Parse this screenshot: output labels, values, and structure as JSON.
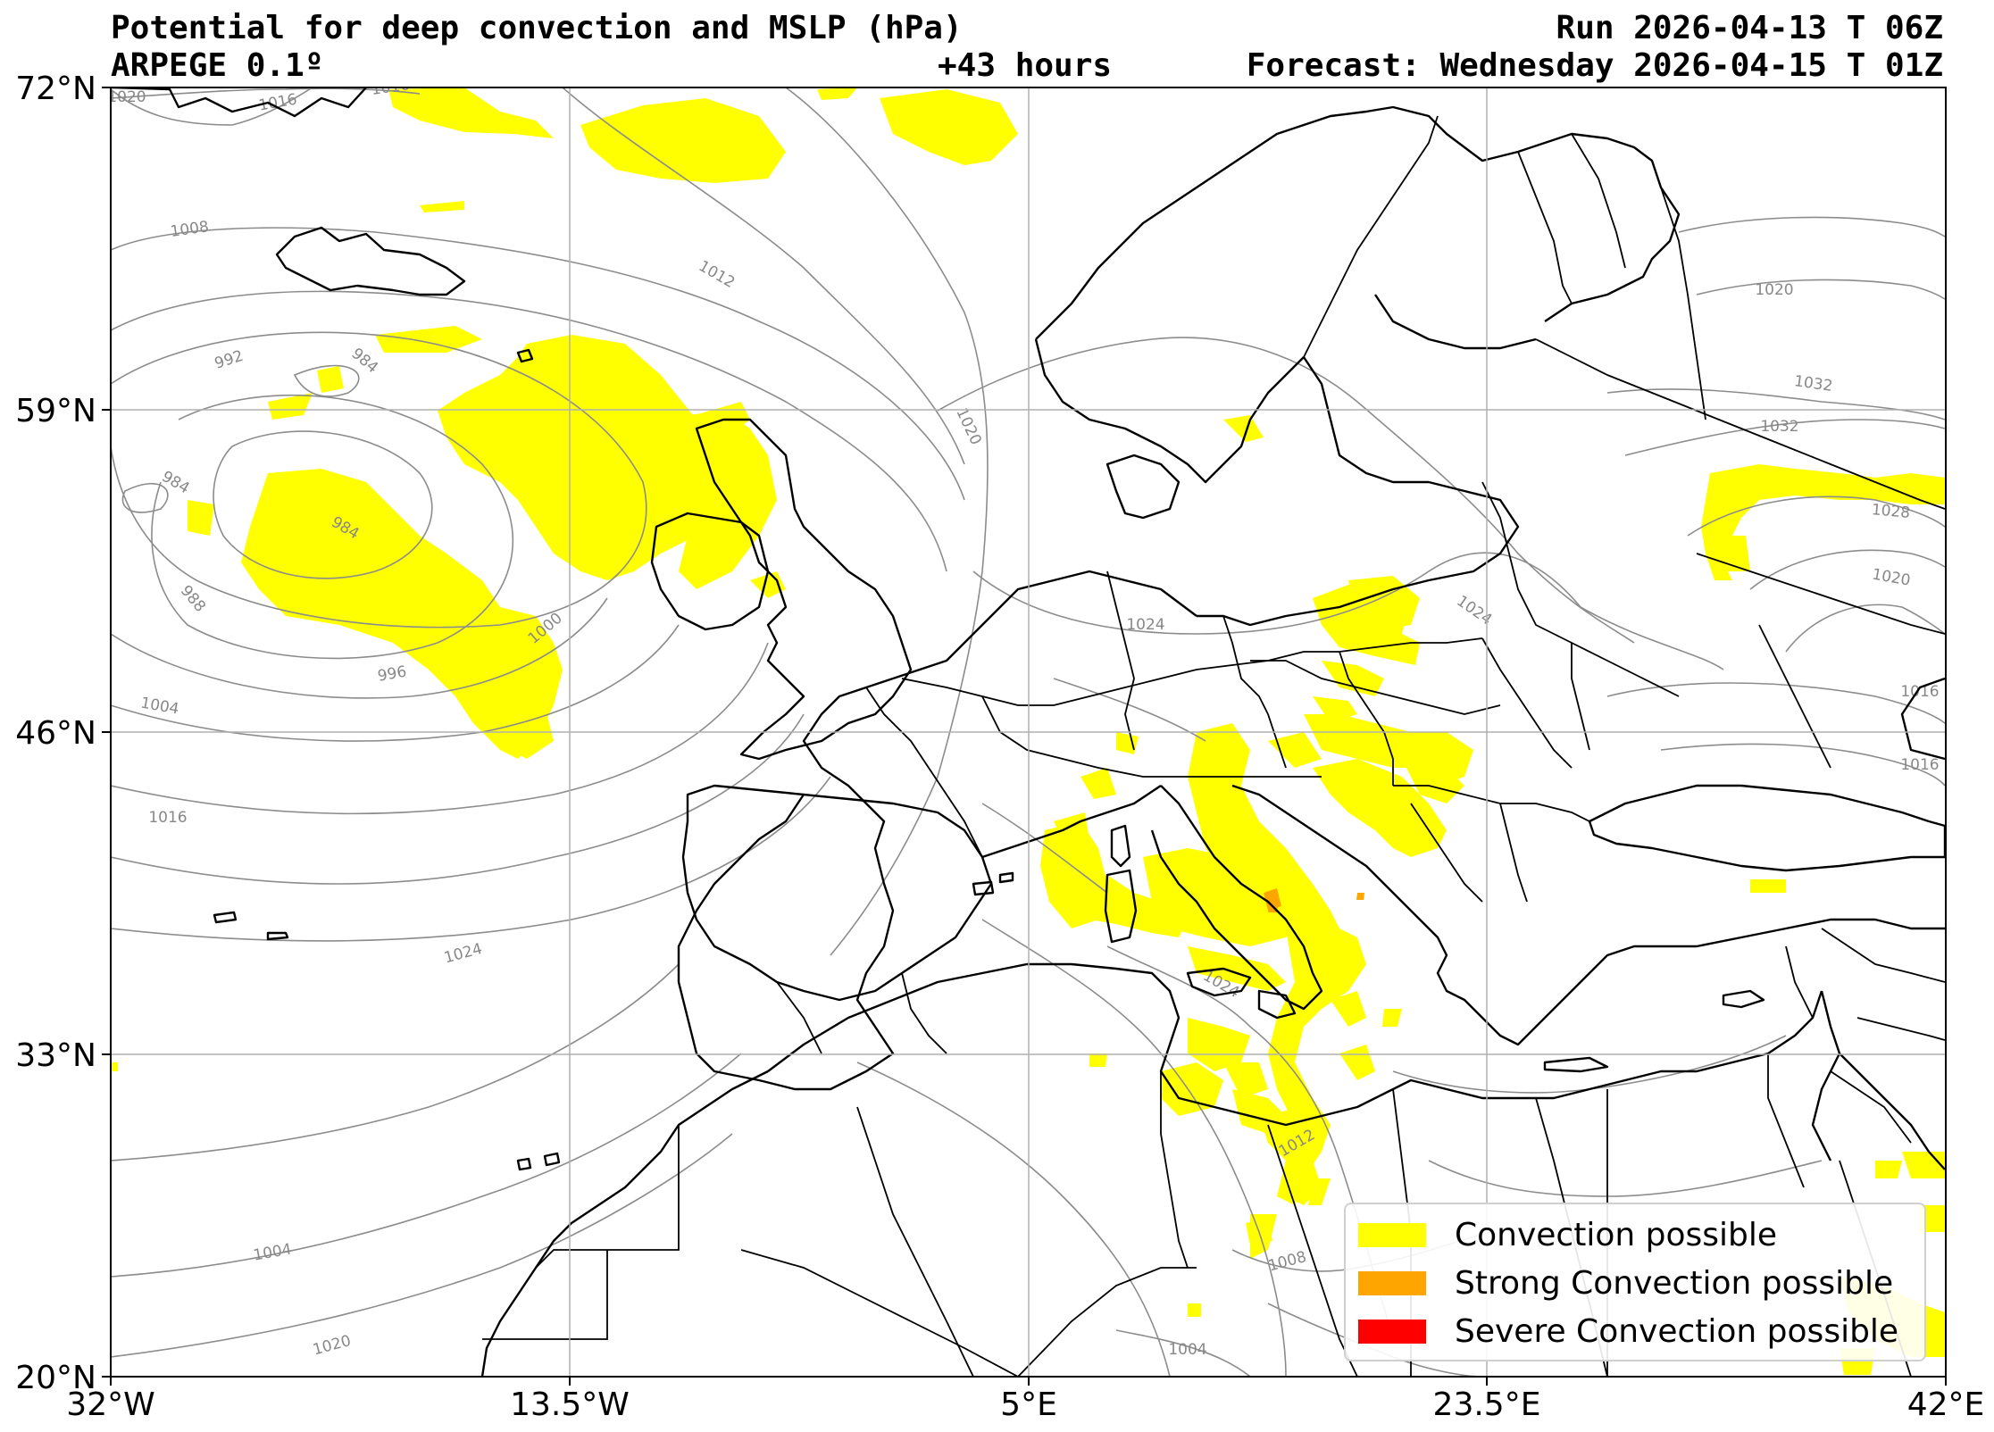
{
  "header": {
    "title": "Potential for deep convection and MSLP (hPa)",
    "model": "ARPEGE 0.1º",
    "run": "Run 2026-04-13 T 06Z",
    "lead": "+43 hours",
    "forecast": "Forecast: Wednesday 2026-04-15 T 01Z"
  },
  "axes": {
    "lat_labels": [
      "72°N",
      "59°N",
      "46°N",
      "33°N",
      "20°N"
    ],
    "lon_labels": [
      "32°W",
      "13.5°W",
      "5°E",
      "23.5°E",
      "42°E"
    ],
    "lat_range": [
      20,
      72
    ],
    "lon_range": [
      -32,
      42
    ],
    "grid": true
  },
  "isobars": {
    "unit": "hPa",
    "labels": [
      "1020",
      "1016",
      "1016",
      "1008",
      "1012",
      "992",
      "984",
      "984",
      "984",
      "988",
      "1000",
      "996",
      "1004",
      "1016",
      "1024",
      "1020",
      "1024",
      "1024",
      "1020",
      "1032",
      "1032",
      "1028",
      "1020",
      "1016",
      "1024",
      "1012",
      "1008",
      "1004",
      "1004",
      "1020",
      "1016"
    ],
    "colors": {
      "isobar": "#8c8c8c",
      "coast": "#000000"
    }
  },
  "legend": {
    "placement": "bottom-right",
    "items": [
      {
        "label": "Convection possible",
        "color": "#ffff00"
      },
      {
        "label": "Strong Convection possible",
        "color": "#ffa500"
      },
      {
        "label": "Severe Convection possible",
        "color": "#ff0000"
      }
    ]
  }
}
